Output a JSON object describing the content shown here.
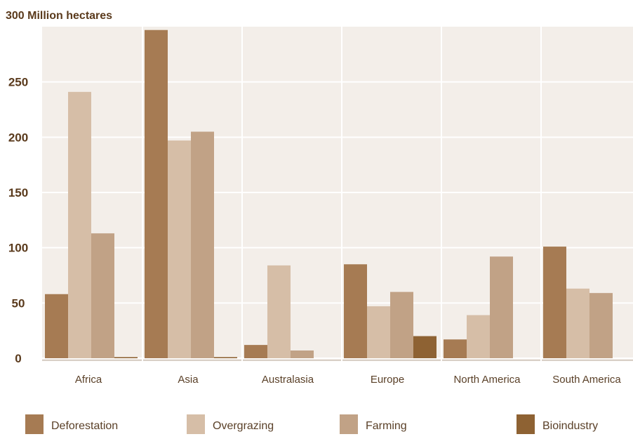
{
  "chart_data": {
    "type": "bar",
    "title": "",
    "ylabel": "300 Million hectares",
    "xlabel": "",
    "ylim": [
      0,
      300
    ],
    "yticks": [
      0,
      50,
      100,
      150,
      200,
      250
    ],
    "grid": true,
    "legend_position": "bottom",
    "categories": [
      "Africa",
      "Asia",
      "Australasia",
      "Europe",
      "North America",
      "South America"
    ],
    "series": [
      {
        "name": "Deforestation",
        "color": "#a67b53",
        "values": [
          58,
          297,
          12,
          85,
          17,
          101
        ]
      },
      {
        "name": "Overgrazing",
        "color": "#d6bea7",
        "values": [
          241,
          197,
          84,
          47,
          39,
          63
        ]
      },
      {
        "name": "Farming",
        "color": "#c1a286",
        "values": [
          113,
          205,
          7,
          60,
          92,
          59
        ]
      },
      {
        "name": "Bioindustry",
        "color": "#8e6233",
        "values": [
          1,
          1,
          null,
          20,
          null,
          null
        ]
      }
    ]
  },
  "colors": {
    "plot_background": "#f3eee9",
    "gridline": "#ffffff",
    "baseline": "#d8cfc6",
    "text": "#5a4028"
  }
}
